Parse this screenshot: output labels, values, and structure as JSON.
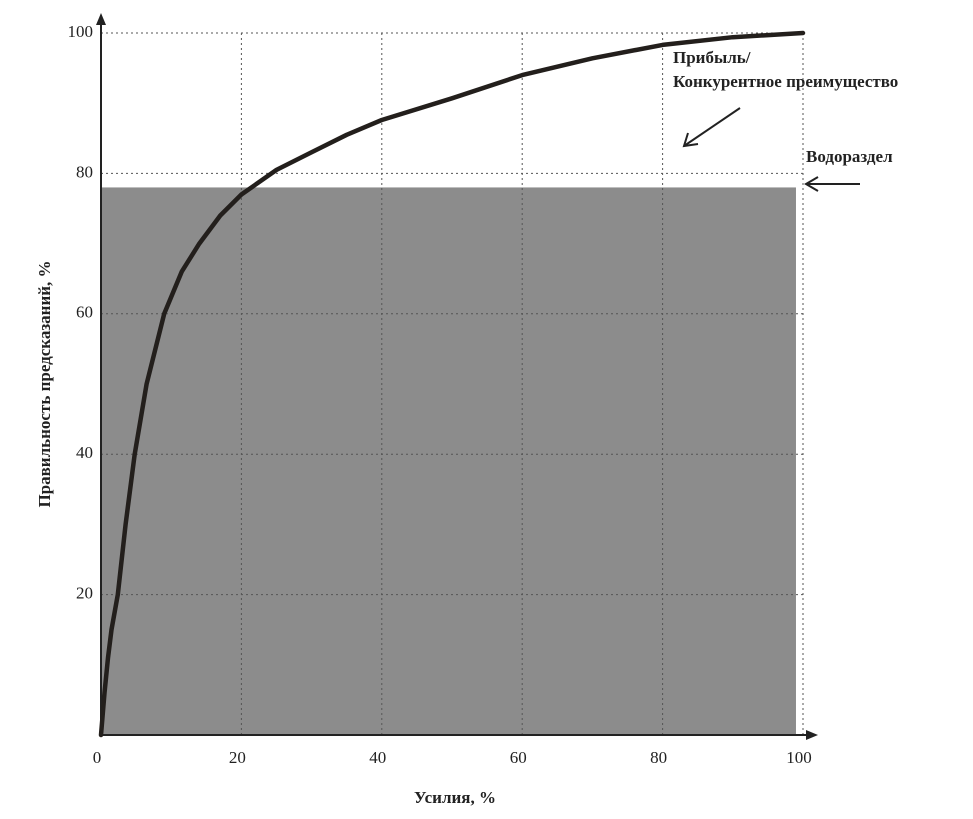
{
  "chart_data": {
    "type": "line",
    "x_label": "Усилия, %",
    "y_label": "Правильность предсказаний, %",
    "x": [
      0,
      0.5,
      1,
      1.5,
      2.4,
      3.5,
      4.8,
      6.5,
      9,
      11.5,
      14,
      17,
      20,
      25,
      30,
      35,
      40,
      50,
      60,
      70,
      80,
      90,
      100
    ],
    "values": [
      0,
      6,
      11,
      15,
      20,
      30,
      40,
      50,
      60,
      66,
      70,
      74,
      77,
      80.5,
      83,
      85.5,
      87.6,
      90.7,
      94,
      96.4,
      98.3,
      99.4,
      100
    ],
    "color": "#231f1c",
    "shaded_region": {
      "xlim": [
        0,
        99
      ],
      "ylim": [
        0,
        78
      ],
      "color": "#8c8c8c"
    },
    "xlim": [
      0,
      100
    ],
    "ylim": [
      0,
      100
    ],
    "xticks": [
      0,
      20,
      40,
      60,
      80,
      100
    ],
    "yticks": [
      20,
      40,
      60,
      80,
      100
    ],
    "grid": true,
    "annotations": [
      {
        "text": [
          "Прибыль/",
          "Конкурентное преимущество"
        ]
      },
      {
        "text": "Водораздел"
      }
    ]
  }
}
